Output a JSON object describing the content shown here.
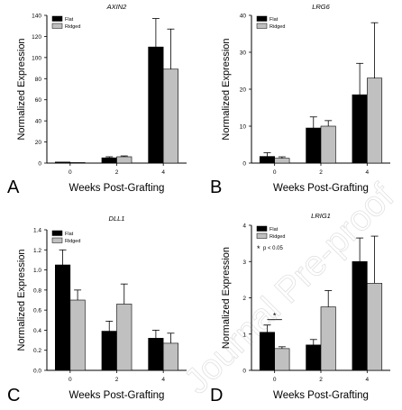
{
  "chart_data": [
    {
      "type": "bar",
      "panel": "A",
      "title": "AXIN2",
      "xlabel": "Weeks Post-Grafting",
      "ylabel": "Normalized Expression",
      "categories": [
        "0",
        "2",
        "4"
      ],
      "ylim": [
        0,
        140
      ],
      "yticks": [
        "0",
        "20",
        "40",
        "60",
        "80",
        "100",
        "120",
        "140"
      ],
      "series": [
        {
          "name": "Flat",
          "color": "#000000",
          "values": [
            1,
            5,
            110
          ],
          "errors": [
            0,
            1,
            27
          ]
        },
        {
          "name": "Ridged",
          "color": "#c0c0c0",
          "values": [
            0.5,
            6,
            89
          ],
          "errors": [
            0,
            0.8,
            38
          ]
        }
      ],
      "legend": "top-left",
      "grid": false
    },
    {
      "type": "bar",
      "panel": "B",
      "title": "LRG6",
      "xlabel": "Weeks Post-Grafting",
      "ylabel": "Normalized Expression",
      "categories": [
        "0",
        "2",
        "4"
      ],
      "ylim": [
        0,
        40
      ],
      "yticks": [
        "0",
        "10",
        "20",
        "30",
        "40"
      ],
      "series": [
        {
          "name": "Flat",
          "color": "#000000",
          "values": [
            1.8,
            9.5,
            18.5
          ],
          "errors": [
            1,
            3,
            8.5
          ]
        },
        {
          "name": "Ridged",
          "color": "#c0c0c0",
          "values": [
            1.3,
            10,
            23
          ],
          "errors": [
            0.4,
            1.5,
            15
          ]
        }
      ],
      "legend": "top-left",
      "grid": false
    },
    {
      "type": "bar",
      "panel": "C",
      "title": "DLL1",
      "xlabel": "Weeks Post-Grafting",
      "ylabel": "Normalized Expression",
      "categories": [
        "0",
        "2",
        "4"
      ],
      "ylim": [
        0,
        1.4
      ],
      "yticks": [
        "0.0",
        "0.2",
        "0.4",
        "0.6",
        "0.8",
        "1.0",
        "1.2",
        "1.4"
      ],
      "series": [
        {
          "name": "Flat",
          "color": "#000000",
          "values": [
            1.05,
            0.39,
            0.32
          ],
          "errors": [
            0.15,
            0.1,
            0.08
          ]
        },
        {
          "name": "Ridged",
          "color": "#c0c0c0",
          "values": [
            0.7,
            0.66,
            0.27
          ],
          "errors": [
            0.1,
            0.2,
            0.1
          ]
        }
      ],
      "legend": "top-left",
      "grid": false
    },
    {
      "type": "bar",
      "panel": "D",
      "title": "LRIG1",
      "xlabel": "Weeks Post-Grafting",
      "ylabel": "Normalized Expression",
      "categories": [
        "0",
        "2",
        "4"
      ],
      "ylim": [
        0,
        4
      ],
      "yticks": [
        "0",
        "1",
        "2",
        "3",
        "4"
      ],
      "series": [
        {
          "name": "Flat",
          "color": "#000000",
          "values": [
            1.05,
            0.7,
            3.0
          ],
          "errors": [
            0.2,
            0.15,
            0.65
          ]
        },
        {
          "name": "Ridged",
          "color": "#c0c0c0",
          "values": [
            0.6,
            1.75,
            2.4
          ],
          "errors": [
            0.05,
            0.45,
            1.3
          ]
        }
      ],
      "annotation": "p < 0.05",
      "annotation_symbol": "*",
      "significance_category": "0",
      "legend": "top-left",
      "grid": false
    }
  ],
  "watermark": "Journal Pre-proof"
}
